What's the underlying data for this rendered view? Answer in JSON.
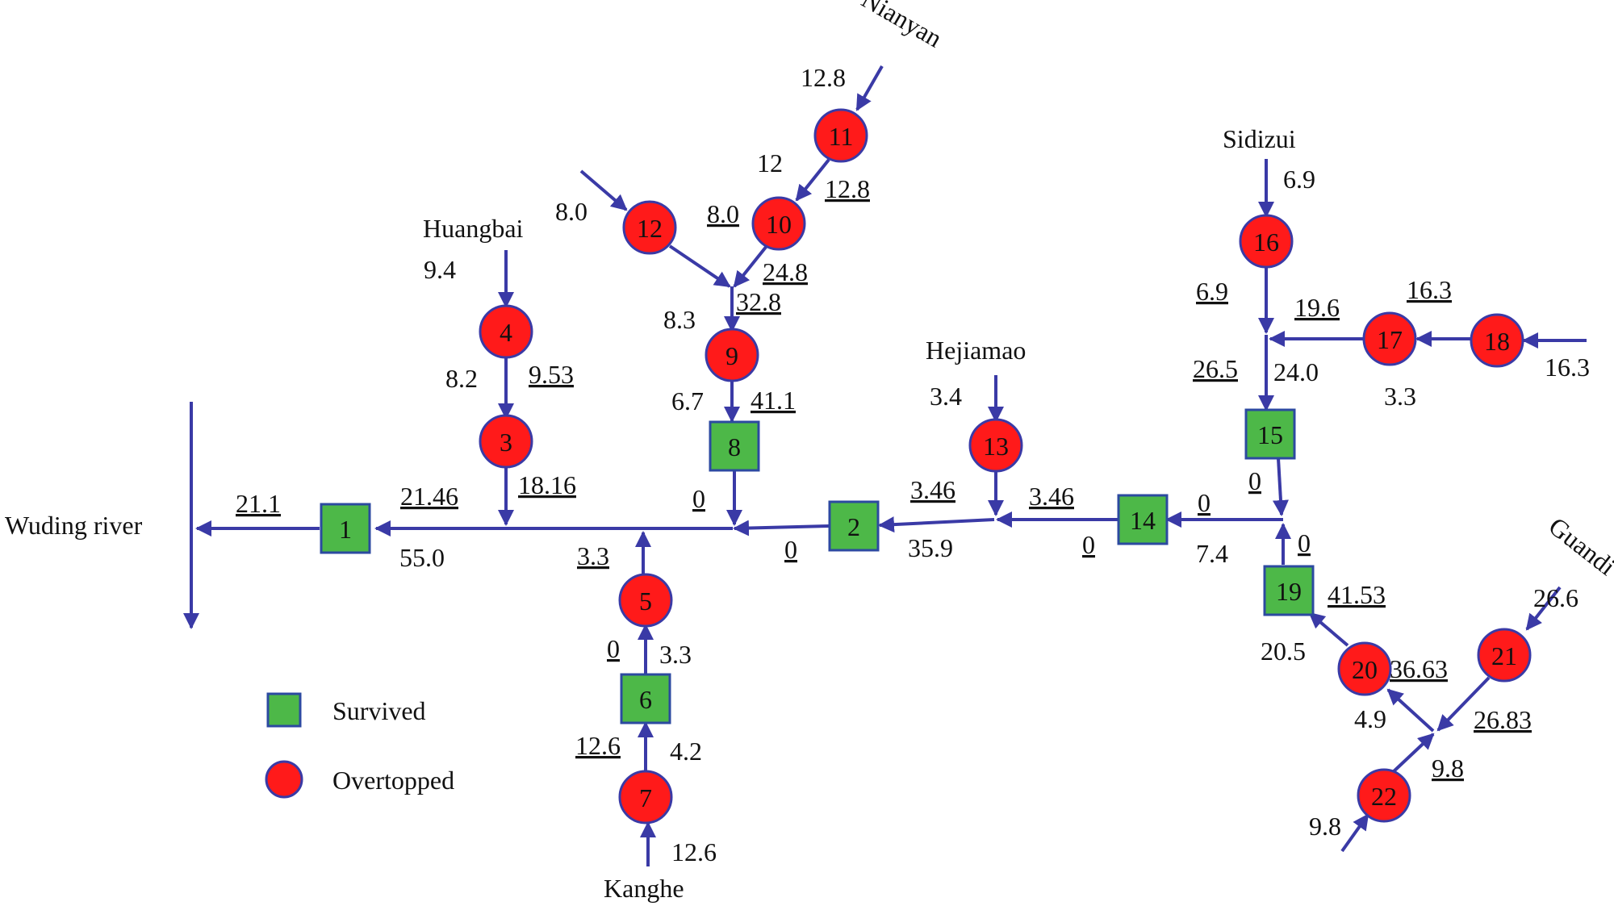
{
  "colors": {
    "edge": "#3a3aa6",
    "survived_fill": "#4db848",
    "survived_stroke": "#2c4aa0",
    "overtopped_fill": "#ff1a1a",
    "overtopped_stroke": "#3a3aa6"
  },
  "places": {
    "wuding": "Wuding river",
    "huangbai": "Huangbai",
    "nianyan": "Nianyan",
    "hejiamao": "Hejiamao",
    "sidizui": "Sidizui",
    "guandi": "Guandi",
    "kanghe": "Kanghe"
  },
  "legend": {
    "survived": "Survived",
    "overtopped": "Overtopped"
  },
  "nodes": [
    {
      "id": "1",
      "status": "survived"
    },
    {
      "id": "2",
      "status": "survived"
    },
    {
      "id": "3",
      "status": "overtopped"
    },
    {
      "id": "4",
      "status": "overtopped"
    },
    {
      "id": "5",
      "status": "overtopped"
    },
    {
      "id": "6",
      "status": "survived"
    },
    {
      "id": "7",
      "status": "overtopped"
    },
    {
      "id": "8",
      "status": "survived"
    },
    {
      "id": "9",
      "status": "overtopped"
    },
    {
      "id": "10",
      "status": "overtopped"
    },
    {
      "id": "11",
      "status": "overtopped"
    },
    {
      "id": "12",
      "status": "overtopped"
    },
    {
      "id": "13",
      "status": "overtopped"
    },
    {
      "id": "14",
      "status": "survived"
    },
    {
      "id": "15",
      "status": "survived"
    },
    {
      "id": "16",
      "status": "overtopped"
    },
    {
      "id": "17",
      "status": "overtopped"
    },
    {
      "id": "18",
      "status": "overtopped"
    },
    {
      "id": "19",
      "status": "survived"
    },
    {
      "id": "20",
      "status": "overtopped"
    },
    {
      "id": "21",
      "status": "overtopped"
    },
    {
      "id": "22",
      "status": "overtopped"
    }
  ],
  "values": [
    {
      "text": "21.1",
      "underline": true
    },
    {
      "text": "21.46",
      "underline": true
    },
    {
      "text": "55.0",
      "underline": false
    },
    {
      "text": "18.16",
      "underline": true
    },
    {
      "text": "9.4",
      "underline": false
    },
    {
      "text": "8.2",
      "underline": false
    },
    {
      "text": "9.53",
      "underline": true
    },
    {
      "text": "3.3",
      "underline": true
    },
    {
      "text": "0",
      "underline": true
    },
    {
      "text": "3.3",
      "underline": false
    },
    {
      "text": "12.6",
      "underline": true
    },
    {
      "text": "4.2",
      "underline": false
    },
    {
      "text": "12.6",
      "underline": false
    },
    {
      "text": "12.8",
      "underline": false
    },
    {
      "text": "12",
      "underline": false
    },
    {
      "text": "12.8",
      "underline": true
    },
    {
      "text": "8.0",
      "underline": false
    },
    {
      "text": "8.0",
      "underline": true
    },
    {
      "text": "24.8",
      "underline": true
    },
    {
      "text": "32.8",
      "underline": true
    },
    {
      "text": "8.3",
      "underline": false
    },
    {
      "text": "6.7",
      "underline": false
    },
    {
      "text": "41.1",
      "underline": true
    },
    {
      "text": "0",
      "underline": true
    },
    {
      "text": "0",
      "underline": true
    },
    {
      "text": "3.46",
      "underline": true
    },
    {
      "text": "35.9",
      "underline": false
    },
    {
      "text": "3.4",
      "underline": false
    },
    {
      "text": "3.46",
      "underline": true
    },
    {
      "text": "0",
      "underline": true
    },
    {
      "text": "0",
      "underline": true
    },
    {
      "text": "7.4",
      "underline": false
    },
    {
      "text": "6.9",
      "underline": false
    },
    {
      "text": "6.9",
      "underline": true
    },
    {
      "text": "19.6",
      "underline": true
    },
    {
      "text": "16.3",
      "underline": true
    },
    {
      "text": "26.5",
      "underline": true
    },
    {
      "text": "24.0",
      "underline": false
    },
    {
      "text": "3.3",
      "underline": false
    },
    {
      "text": "16.3",
      "underline": false
    },
    {
      "text": "0",
      "underline": true
    },
    {
      "text": "0",
      "underline": true
    },
    {
      "text": "41.53",
      "underline": true
    },
    {
      "text": "20.5",
      "underline": false
    },
    {
      "text": "36.63",
      "underline": true
    },
    {
      "text": "26.6",
      "underline": false
    },
    {
      "text": "4.9",
      "underline": false
    },
    {
      "text": "26.83",
      "underline": true
    },
    {
      "text": "9.8",
      "underline": true
    },
    {
      "text": "9.8",
      "underline": false
    }
  ]
}
